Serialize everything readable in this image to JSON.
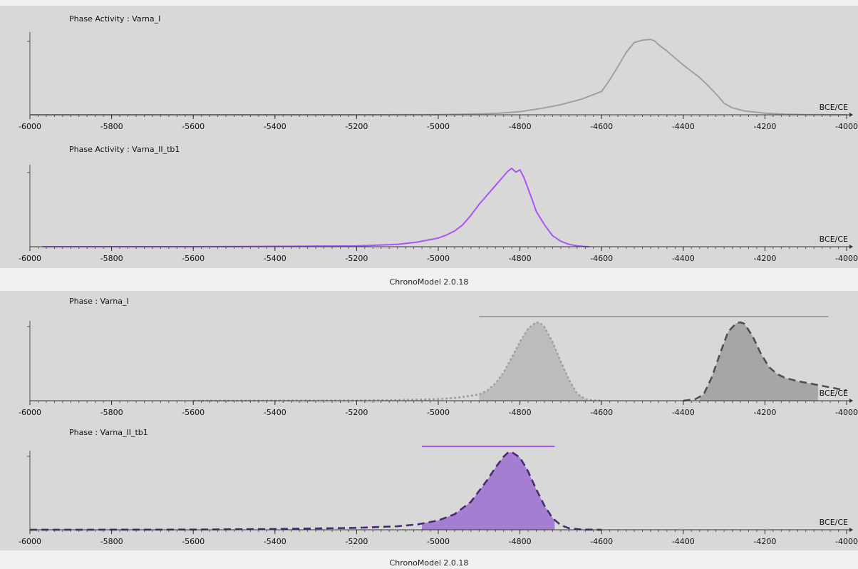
{
  "footer_label": "ChronoModel 2.0.18",
  "axis_unit_label": "BCE/CE",
  "colors": {
    "panel_bg": "#d8d8d8",
    "footer_bg": "#f0f0f0",
    "varna_i": "#a0a0a0",
    "varna_ii": "#a855f7",
    "varna_i_hpd_fill": "#bcbcbc",
    "varna_i_end_fill": "#a6a6a6",
    "varna_i_end_line": "#505050",
    "varna_ii_fill": "#a47ed0",
    "varna_ii_line": "#4b2a74"
  },
  "chart_data": [
    {
      "type": "line",
      "title": "Phase Activity : Varna_I",
      "xlabel": "BCE/CE",
      "xlim": [
        -6000,
        -4000
      ],
      "xticks": [
        -6000,
        -5800,
        -5600,
        -5400,
        -5200,
        -5000,
        -4800,
        -4600,
        -4400,
        -4200,
        -4000
      ],
      "series": [
        {
          "color": "#a0a0a0",
          "style": "solid",
          "x": [
            -6000,
            -5200,
            -5000,
            -4900,
            -4850,
            -4800,
            -4750,
            -4700,
            -4650,
            -4600,
            -4580,
            -4560,
            -4540,
            -4520,
            -4500,
            -4480,
            -4470,
            -4460,
            -4440,
            -4420,
            -4400,
            -4380,
            -4360,
            -4340,
            -4320,
            -4300,
            -4280,
            -4250,
            -4200,
            -4150,
            -4100,
            -4050,
            -4000
          ],
          "y": [
            0,
            0,
            0.003,
            0.01,
            0.02,
            0.04,
            0.08,
            0.13,
            0.2,
            0.3,
            0.45,
            0.62,
            0.8,
            0.93,
            0.96,
            0.97,
            0.95,
            0.9,
            0.82,
            0.73,
            0.64,
            0.56,
            0.48,
            0.38,
            0.27,
            0.15,
            0.09,
            0.05,
            0.02,
            0.008,
            0.003,
            0.001,
            0
          ]
        }
      ]
    },
    {
      "type": "line",
      "title": "Phase Activity : Varna_II_tb1",
      "xlabel": "BCE/CE",
      "xlim": [
        -6000,
        -4000
      ],
      "xticks": [
        -6000,
        -5800,
        -5600,
        -5400,
        -5200,
        -5000,
        -4800,
        -4600,
        -4400,
        -4200,
        -4000
      ],
      "series": [
        {
          "color": "#a855f7",
          "style": "solid",
          "x": [
            -5970,
            -5600,
            -5200,
            -5100,
            -5050,
            -5000,
            -4980,
            -4960,
            -4940,
            -4920,
            -4900,
            -4880,
            -4860,
            -4840,
            -4830,
            -4820,
            -4810,
            -4800,
            -4790,
            -4780,
            -4770,
            -4760,
            -4740,
            -4720,
            -4700,
            -4680,
            -4660,
            -4640,
            -4630
          ],
          "y": [
            0,
            0,
            0.01,
            0.03,
            0.06,
            0.11,
            0.15,
            0.2,
            0.28,
            0.4,
            0.54,
            0.66,
            0.78,
            0.9,
            0.96,
            1.0,
            0.95,
            0.98,
            0.88,
            0.74,
            0.6,
            0.45,
            0.28,
            0.14,
            0.07,
            0.03,
            0.01,
            0.003,
            0
          ]
        }
      ]
    },
    {
      "type": "area",
      "title": "Phase : Varna_I",
      "xlabel": "BCE/CE",
      "xlim": [
        -6000,
        -4000
      ],
      "xticks": [
        -6000,
        -5800,
        -5600,
        -5400,
        -5200,
        -5000,
        -4800,
        -4600,
        -4400,
        -4200,
        -4000
      ],
      "range_bar": {
        "from": -4900,
        "to": -4045
      },
      "series": [
        {
          "color": "#a0a0a0",
          "style": "dotted",
          "fill": "#bcbcbc",
          "fill_range": [
            -4900,
            -4640
          ],
          "x": [
            -5600,
            -5200,
            -5100,
            -5000,
            -4950,
            -4900,
            -4880,
            -4860,
            -4840,
            -4820,
            -4800,
            -4780,
            -4760,
            -4750,
            -4740,
            -4720,
            -4700,
            -4680,
            -4660,
            -4640,
            -4620,
            -4600
          ],
          "y": [
            0,
            0.003,
            0.008,
            0.02,
            0.04,
            0.08,
            0.13,
            0.22,
            0.36,
            0.55,
            0.75,
            0.92,
            1.0,
            0.99,
            0.94,
            0.75,
            0.5,
            0.27,
            0.09,
            0.02,
            0.004,
            0
          ]
        },
        {
          "color": "#505050",
          "style": "dashed",
          "fill": "#a6a6a6",
          "fill_range": [
            -4360,
            -4070
          ],
          "x": [
            -4400,
            -4370,
            -4350,
            -4330,
            -4310,
            -4290,
            -4270,
            -4260,
            -4250,
            -4230,
            -4210,
            -4190,
            -4170,
            -4150,
            -4120,
            -4090,
            -4060,
            -4030,
            -4000
          ],
          "y": [
            0,
            0.02,
            0.08,
            0.3,
            0.6,
            0.88,
            0.99,
            1.0,
            0.98,
            0.82,
            0.6,
            0.43,
            0.34,
            0.29,
            0.25,
            0.22,
            0.19,
            0.16,
            0.13
          ]
        }
      ]
    },
    {
      "type": "area",
      "title": "Phase : Varna_II_tb1",
      "xlabel": "BCE/CE",
      "xlim": [
        -6000,
        -4000
      ],
      "xticks": [
        -6000,
        -5800,
        -5600,
        -5400,
        -5200,
        -5000,
        -4800,
        -4600,
        -4400,
        -4200,
        -4000
      ],
      "range_bar": {
        "from": -5040,
        "to": -4715
      },
      "series": [
        {
          "color": "#4b2a74",
          "style": "dashed",
          "fill": "#a47ed0",
          "fill_range": [
            -5040,
            -4715
          ],
          "x": [
            -6000,
            -5600,
            -5400,
            -5200,
            -5100,
            -5050,
            -5000,
            -4960,
            -4920,
            -4880,
            -4860,
            -4840,
            -4830,
            -4820,
            -4800,
            -4780,
            -4760,
            -4740,
            -4720,
            -4700,
            -4680,
            -4650,
            -4600
          ],
          "y": [
            0,
            0.003,
            0.01,
            0.025,
            0.045,
            0.07,
            0.12,
            0.2,
            0.36,
            0.64,
            0.8,
            0.94,
            0.99,
            1.0,
            0.93,
            0.75,
            0.52,
            0.31,
            0.15,
            0.06,
            0.02,
            0.004,
            0
          ]
        }
      ]
    }
  ]
}
